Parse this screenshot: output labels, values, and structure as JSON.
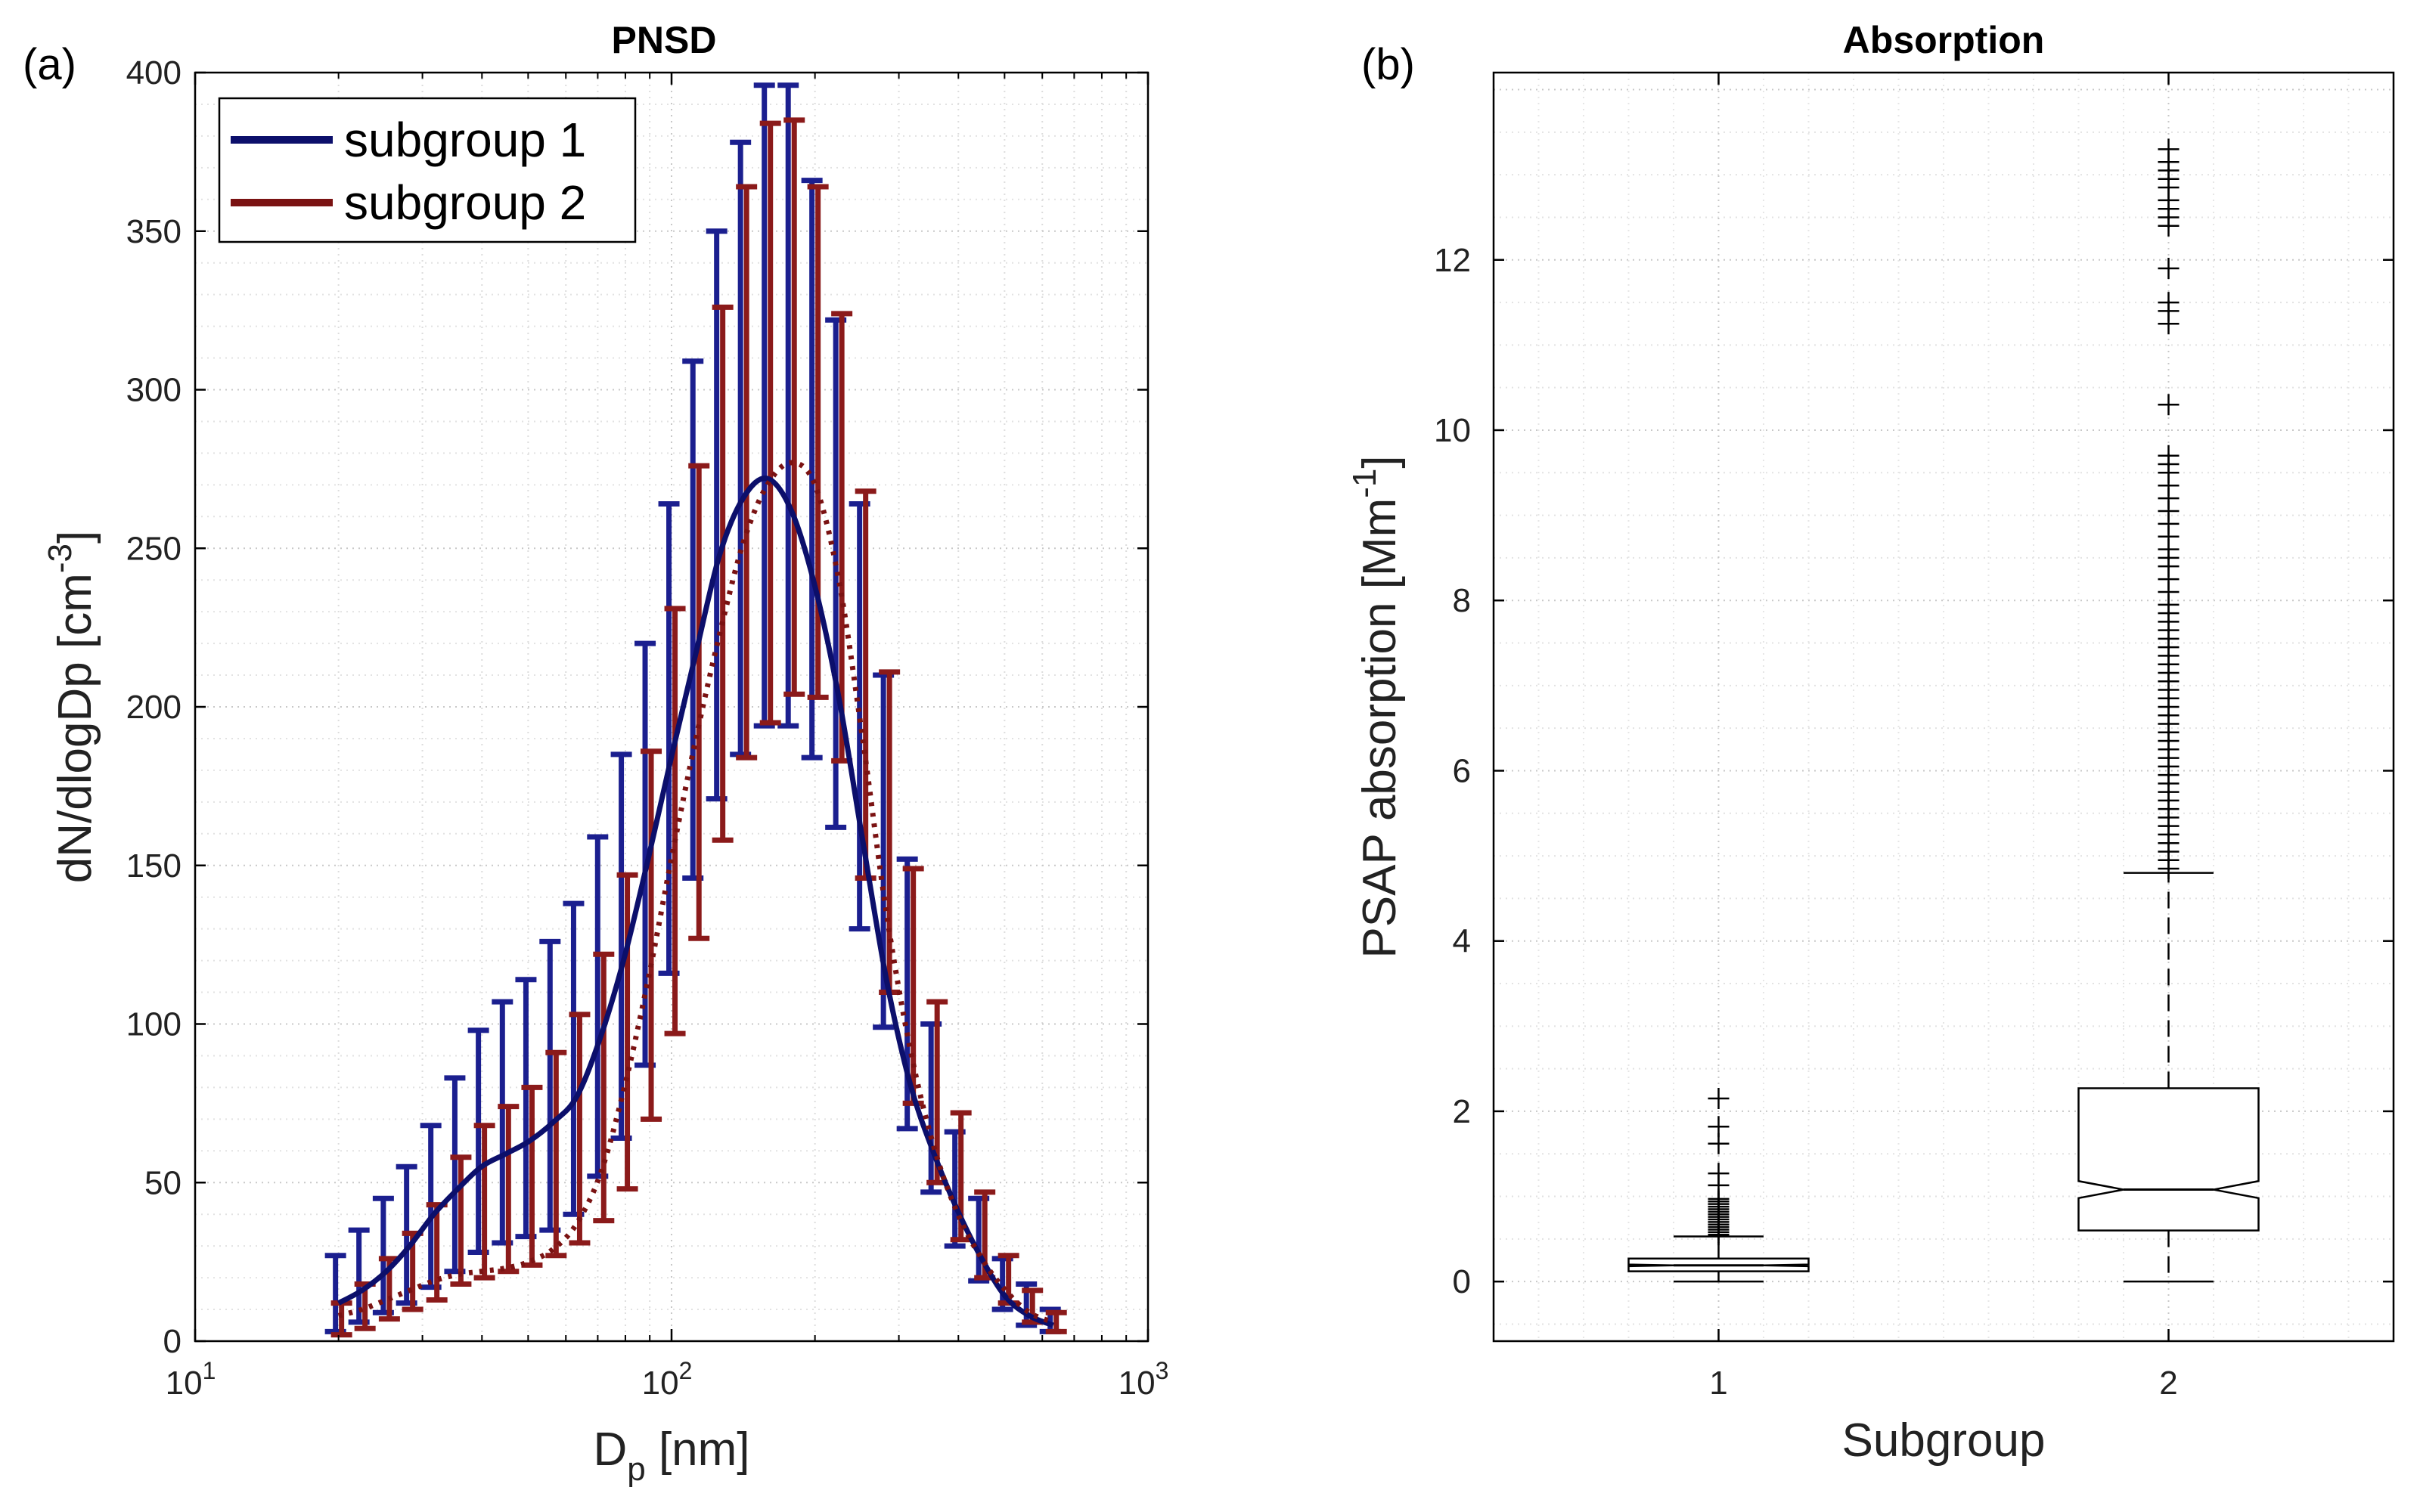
{
  "chart_data": [
    {
      "panel": "(a)",
      "type": "line",
      "title": "PNSD",
      "xlabel": "D",
      "xlabel_sub": "p",
      "xlabel_unit": " [nm]",
      "ylabel": "dN/dlogDp [cm",
      "ylabel_sup": "-3",
      "ylabel_end": "]",
      "x_scale": "log",
      "xlim": [
        10,
        1000
      ],
      "ylim": [
        0,
        400
      ],
      "x_ticks": [
        {
          "value": 10,
          "base": "10",
          "exp": "1"
        },
        {
          "value": 100,
          "base": "10",
          "exp": "2"
        },
        {
          "value": 1000,
          "base": "10",
          "exp": "3"
        }
      ],
      "y_ticks": [
        "0",
        "50",
        "100",
        "150",
        "200",
        "250",
        "300",
        "350",
        "400"
      ],
      "grid": true,
      "legend_position": "top-left",
      "series": [
        {
          "name": "subgroup 1",
          "color": "#0c0f6b",
          "errorbar_color": "#1b1f8f",
          "style": "solid",
          "points": [
            {
              "x": 20,
              "y": 12,
              "lo": 3,
              "hi": 27
            },
            {
              "x": 22.4,
              "y": 16,
              "lo": 6,
              "hi": 35
            },
            {
              "x": 25.2,
              "y": 22,
              "lo": 9,
              "hi": 45
            },
            {
              "x": 28.2,
              "y": 30,
              "lo": 12,
              "hi": 55
            },
            {
              "x": 31.7,
              "y": 40,
              "lo": 17,
              "hi": 68
            },
            {
              "x": 35.6,
              "y": 48,
              "lo": 22,
              "hi": 83
            },
            {
              "x": 39.9,
              "y": 55,
              "lo": 28,
              "hi": 98
            },
            {
              "x": 44.8,
              "y": 59,
              "lo": 31,
              "hi": 107
            },
            {
              "x": 50.2,
              "y": 63,
              "lo": 33,
              "hi": 114
            },
            {
              "x": 56.4,
              "y": 69,
              "lo": 35,
              "hi": 126
            },
            {
              "x": 63.2,
              "y": 77,
              "lo": 40,
              "hi": 138
            },
            {
              "x": 71,
              "y": 96,
              "lo": 52,
              "hi": 159
            },
            {
              "x": 79.6,
              "y": 121,
              "lo": 64,
              "hi": 185
            },
            {
              "x": 89.3,
              "y": 152,
              "lo": 87,
              "hi": 220
            },
            {
              "x": 100.2,
              "y": 185,
              "lo": 116,
              "hi": 264
            },
            {
              "x": 112.5,
              "y": 217,
              "lo": 146,
              "hi": 309
            },
            {
              "x": 126.2,
              "y": 248,
              "lo": 171,
              "hi": 350
            },
            {
              "x": 141.6,
              "y": 266,
              "lo": 185,
              "hi": 378
            },
            {
              "x": 158.9,
              "y": 272,
              "lo": 194,
              "hi": 396
            },
            {
              "x": 178.3,
              "y": 262,
              "lo": 194,
              "hi": 396
            },
            {
              "x": 200,
              "y": 238,
              "lo": 184,
              "hi": 366
            },
            {
              "x": 224.4,
              "y": 203,
              "lo": 162,
              "hi": 322
            },
            {
              "x": 251.8,
              "y": 158,
              "lo": 130,
              "hi": 264
            },
            {
              "x": 282.5,
              "y": 114,
              "lo": 99,
              "hi": 210
            },
            {
              "x": 317,
              "y": 81,
              "lo": 67,
              "hi": 152
            },
            {
              "x": 355.7,
              "y": 59,
              "lo": 47,
              "hi": 100
            },
            {
              "x": 399.1,
              "y": 41,
              "lo": 30,
              "hi": 66
            },
            {
              "x": 447.8,
              "y": 26,
              "lo": 19,
              "hi": 45
            },
            {
              "x": 502.4,
              "y": 14,
              "lo": 10,
              "hi": 26
            },
            {
              "x": 563.8,
              "y": 8,
              "lo": 5,
              "hi": 18
            },
            {
              "x": 632.6,
              "y": 5,
              "lo": 3,
              "hi": 10
            }
          ]
        },
        {
          "name": "subgroup 2",
          "color": "#7a1212",
          "errorbar_color": "#8b1a1a",
          "style": "dotted",
          "points": [
            {
              "x": 20,
              "y": 8,
              "lo": 2,
              "hi": 12
            },
            {
              "x": 22.4,
              "y": 10,
              "lo": 4,
              "hi": 18
            },
            {
              "x": 25.2,
              "y": 13,
              "lo": 7,
              "hi": 26
            },
            {
              "x": 28.2,
              "y": 16,
              "lo": 10,
              "hi": 34
            },
            {
              "x": 31.7,
              "y": 19,
              "lo": 13,
              "hi": 43
            },
            {
              "x": 35.6,
              "y": 21,
              "lo": 18,
              "hi": 58
            },
            {
              "x": 39.9,
              "y": 22,
              "lo": 20,
              "hi": 68
            },
            {
              "x": 44.8,
              "y": 23,
              "lo": 22,
              "hi": 74
            },
            {
              "x": 50.2,
              "y": 25,
              "lo": 24,
              "hi": 80
            },
            {
              "x": 56.4,
              "y": 29,
              "lo": 27,
              "hi": 91
            },
            {
              "x": 63.2,
              "y": 37,
              "lo": 31,
              "hi": 103
            },
            {
              "x": 71,
              "y": 53,
              "lo": 38,
              "hi": 122
            },
            {
              "x": 79.6,
              "y": 80,
              "lo": 48,
              "hi": 147
            },
            {
              "x": 89.3,
              "y": 114,
              "lo": 70,
              "hi": 186
            },
            {
              "x": 100.2,
              "y": 153,
              "lo": 97,
              "hi": 231
            },
            {
              "x": 112.5,
              "y": 190,
              "lo": 127,
              "hi": 276
            },
            {
              "x": 126.2,
              "y": 223,
              "lo": 158,
              "hi": 326
            },
            {
              "x": 141.6,
              "y": 252,
              "lo": 184,
              "hi": 364
            },
            {
              "x": 158.9,
              "y": 270,
              "lo": 195,
              "hi": 384
            },
            {
              "x": 178.3,
              "y": 277,
              "lo": 204,
              "hi": 385
            },
            {
              "x": 200,
              "y": 270,
              "lo": 203,
              "hi": 364
            },
            {
              "x": 224.4,
              "y": 240,
              "lo": 183,
              "hi": 324
            },
            {
              "x": 251.8,
              "y": 190,
              "lo": 146,
              "hi": 268
            },
            {
              "x": 282.5,
              "y": 135,
              "lo": 110,
              "hi": 211
            },
            {
              "x": 317,
              "y": 92,
              "lo": 75,
              "hi": 149
            },
            {
              "x": 355.7,
              "y": 61,
              "lo": 50,
              "hi": 107
            },
            {
              "x": 399.1,
              "y": 40,
              "lo": 32,
              "hi": 72
            },
            {
              "x": 447.8,
              "y": 26,
              "lo": 20,
              "hi": 47
            },
            {
              "x": 502.4,
              "y": 16,
              "lo": 12,
              "hi": 27
            },
            {
              "x": 563.8,
              "y": 9,
              "lo": 6,
              "hi": 16
            },
            {
              "x": 632.6,
              "y": 6,
              "lo": 3,
              "hi": 9
            }
          ]
        }
      ]
    },
    {
      "panel": "(b)",
      "type": "boxplot",
      "title": "Absorption",
      "xlabel": "Subgroup",
      "ylabel": "PSAP absorption [Mm",
      "ylabel_sup": "-1",
      "ylabel_end": "]",
      "xlim": [
        0.5,
        2.5
      ],
      "ylim": [
        -0.7,
        14.2
      ],
      "x_ticks": [
        "1",
        "2"
      ],
      "y_ticks": [
        "0",
        "2",
        "4",
        "6",
        "8",
        "10",
        "12"
      ],
      "grid": true,
      "color": "#000000",
      "boxes": [
        {
          "category": "1",
          "q1": 0.12,
          "median": 0.19,
          "q3": 0.27,
          "notch_lo": 0.18,
          "notch_hi": 0.2,
          "whisker_lo": 0.0,
          "whisker_hi": 0.53,
          "outliers": [
            0.55,
            0.58,
            0.61,
            0.64,
            0.67,
            0.7,
            0.73,
            0.76,
            0.79,
            0.82,
            0.85,
            0.88,
            0.91,
            0.94,
            0.97,
            1.13,
            1.27,
            1.62,
            1.82,
            2.15
          ]
        },
        {
          "category": "2",
          "q1": 0.6,
          "median": 1.08,
          "q3": 2.27,
          "notch_lo": 0.98,
          "notch_hi": 1.18,
          "whisker_lo": 0.0,
          "whisker_hi": 4.8,
          "outliers": [
            4.85,
            4.95,
            5.05,
            5.15,
            5.25,
            5.35,
            5.45,
            5.55,
            5.65,
            5.75,
            5.85,
            5.95,
            6.05,
            6.15,
            6.25,
            6.35,
            6.45,
            6.55,
            6.65,
            6.75,
            6.85,
            6.95,
            7.05,
            7.15,
            7.25,
            7.35,
            7.45,
            7.55,
            7.65,
            7.75,
            7.85,
            7.95,
            8.1,
            8.25,
            8.4,
            8.5,
            8.6,
            8.75,
            8.9,
            9.05,
            9.2,
            9.35,
            9.5,
            9.6,
            9.7,
            10.3,
            11.25,
            11.4,
            11.5,
            11.9,
            12.4,
            12.5,
            12.6,
            12.7,
            12.85,
            12.95,
            13.05,
            13.15,
            13.3
          ]
        }
      ]
    }
  ]
}
